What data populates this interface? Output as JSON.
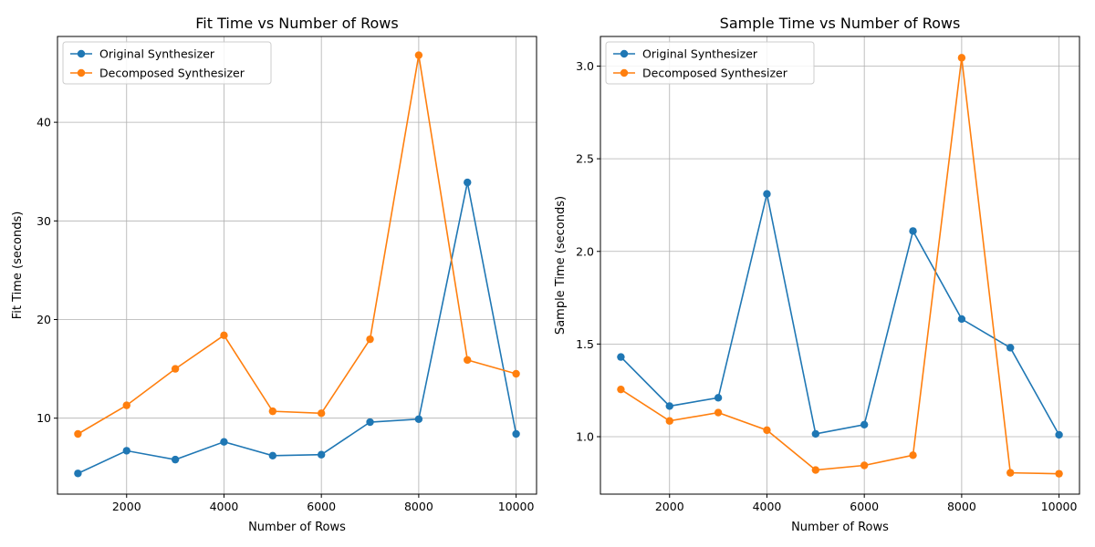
{
  "colors": {
    "series_0": "#1f77b4",
    "series_1": "#ff7f0e"
  },
  "chart_data": [
    {
      "type": "line",
      "title": "Fit Time vs Number of Rows",
      "xlabel": "Number of Rows",
      "ylabel": "Fit Time (seconds)",
      "x": [
        1000,
        2000,
        3000,
        4000,
        5000,
        6000,
        7000,
        8000,
        9000,
        10000
      ],
      "xlim": [
        580,
        10420
      ],
      "ylim": [
        2.3,
        48.7
      ],
      "xticks": [
        2000,
        4000,
        6000,
        8000,
        10000
      ],
      "yticks": [
        10,
        20,
        30,
        40
      ],
      "xtick_labels": [
        "2000",
        "4000",
        "6000",
        "8000",
        "10000"
      ],
      "ytick_labels": [
        "10",
        "20",
        "30",
        "40"
      ],
      "grid": true,
      "legend_position": "upper-left",
      "series": [
        {
          "name": "Original Synthesizer",
          "color": "#1f77b4",
          "values": [
            4.4,
            6.7,
            5.8,
            7.6,
            6.2,
            6.3,
            9.6,
            9.9,
            33.9,
            8.4
          ]
        },
        {
          "name": "Decomposed Synthesizer",
          "color": "#ff7f0e",
          "values": [
            8.4,
            11.3,
            15.0,
            18.4,
            10.7,
            10.5,
            18.0,
            46.8,
            15.9,
            14.5
          ]
        }
      ]
    },
    {
      "type": "line",
      "title": "Sample Time vs Number of Rows",
      "xlabel": "Number of Rows",
      "ylabel": "Sample Time (seconds)",
      "x": [
        1000,
        2000,
        3000,
        4000,
        5000,
        6000,
        7000,
        8000,
        9000,
        10000
      ],
      "xlim": [
        580,
        10420
      ],
      "ylim": [
        0.69,
        3.16
      ],
      "xticks": [
        2000,
        4000,
        6000,
        8000,
        10000
      ],
      "yticks": [
        1.0,
        1.5,
        2.0,
        2.5,
        3.0
      ],
      "xtick_labels": [
        "2000",
        "4000",
        "6000",
        "8000",
        "10000"
      ],
      "ytick_labels": [
        "1.0",
        "1.5",
        "2.0",
        "2.5",
        "3.0"
      ],
      "grid": true,
      "legend_position": "upper-left",
      "series": [
        {
          "name": "Original Synthesizer",
          "color": "#1f77b4",
          "values": [
            1.43,
            1.165,
            1.21,
            2.31,
            1.015,
            1.065,
            2.11,
            1.635,
            1.48,
            1.01
          ]
        },
        {
          "name": "Decomposed Synthesizer",
          "color": "#ff7f0e",
          "values": [
            1.255,
            1.085,
            1.13,
            1.035,
            0.82,
            0.845,
            0.9,
            3.045,
            0.805,
            0.8
          ]
        }
      ]
    }
  ]
}
